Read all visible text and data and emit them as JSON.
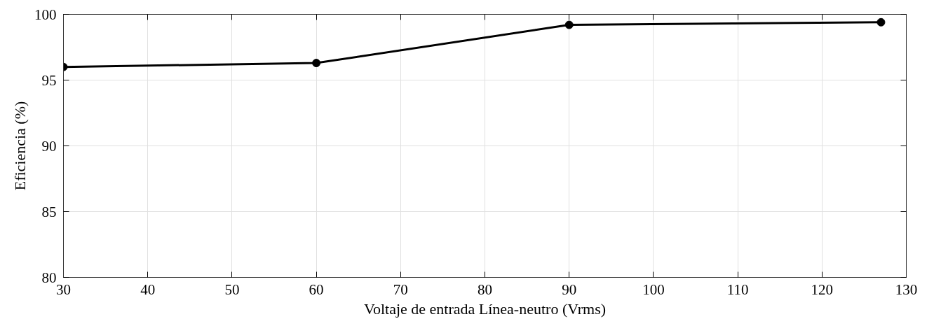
{
  "chart_data": {
    "type": "line",
    "xlabel": "Voltaje de entrada Línea-neutro (Vrms)",
    "ylabel": "Eficiencia (%)",
    "x": [
      30,
      60,
      90,
      127
    ],
    "series": [
      {
        "color": "#000000",
        "values": [
          96.0,
          96.3,
          99.2,
          99.4
        ]
      }
    ],
    "xlim": [
      30,
      130
    ],
    "xticks": [
      30,
      40,
      50,
      60,
      70,
      80,
      90,
      100,
      110,
      120,
      130
    ],
    "ylim": [
      80,
      100
    ],
    "yticks": [
      80,
      85,
      90,
      95,
      100
    ],
    "grid": true,
    "marker": "circle",
    "line_style": "solid"
  }
}
